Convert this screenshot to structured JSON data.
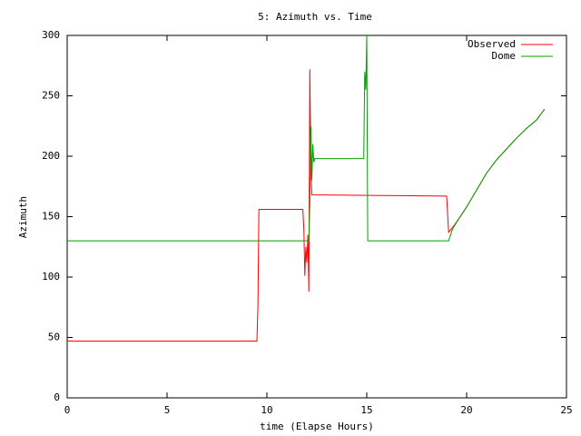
{
  "chart_data": {
    "type": "line",
    "title": "5: Azimuth vs. Time",
    "x_label": "time (Elapse Hours)",
    "y_label": "Azimuth",
    "xlim": [
      0,
      25
    ],
    "xticks": [
      0,
      5,
      10,
      15,
      20,
      25
    ],
    "ylim": [
      0,
      300
    ],
    "yticks": [
      0,
      50,
      100,
      150,
      200,
      250,
      300
    ],
    "grid": false,
    "legend": "top-right",
    "series": [
      {
        "name": "Observed",
        "color": "#ff0000",
        "x": [
          0,
          9.5,
          9.55,
          9.6,
          11.8,
          11.85,
          11.9,
          11.95,
          12.0,
          12.05,
          12.1,
          12.15,
          12.2,
          12.25,
          19.0,
          19.1,
          19.3,
          19.6,
          20.0,
          20.5,
          21.0,
          21.5,
          22.0,
          22.5,
          23.0,
          23.5,
          23.9
        ],
        "values": [
          47,
          47,
          75,
          156,
          156,
          140,
          101,
          125,
          112,
          135,
          88,
          272,
          190,
          168,
          167,
          137,
          141,
          148,
          158,
          172,
          186,
          197,
          206,
          215,
          223,
          230,
          239
        ]
      },
      {
        "name": "Dome",
        "color": "#00a000",
        "x": [
          0,
          12.1,
          12.15,
          12.2,
          12.25,
          12.3,
          12.35,
          12.4,
          14.85,
          14.9,
          14.95,
          15.0,
          15.05,
          19.1,
          19.3,
          19.6,
          20.0,
          20.5,
          21.0,
          21.5,
          22.0,
          22.5,
          23.0,
          23.5,
          23.9
        ],
        "values": [
          130,
          130,
          160,
          225,
          180,
          210,
          195,
          198,
          198,
          270,
          255,
          300,
          130,
          130,
          140,
          148,
          158,
          172,
          186,
          197,
          206,
          215,
          223,
          230,
          239
        ]
      }
    ]
  }
}
